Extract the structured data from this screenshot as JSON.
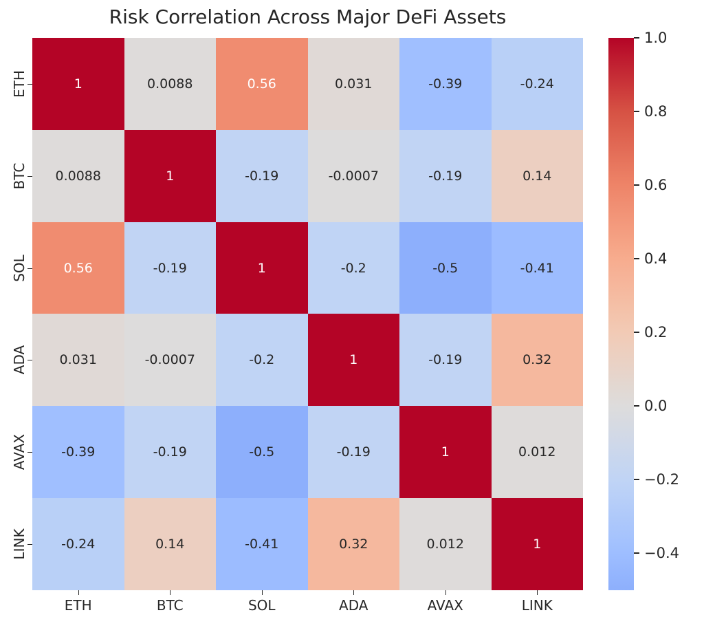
{
  "title": "Risk Correlation Across Major DeFi Assets",
  "chart_data": {
    "type": "heatmap",
    "title": "Risk Correlation Across Major DeFi Assets",
    "categories": [
      "ETH",
      "BTC",
      "SOL",
      "ADA",
      "AVAX",
      "LINK"
    ],
    "matrix": [
      [
        1,
        0.0088,
        0.56,
        0.031,
        -0.39,
        -0.24
      ],
      [
        0.0088,
        1,
        -0.19,
        -0.0007,
        -0.19,
        0.14
      ],
      [
        0.56,
        -0.19,
        1,
        -0.2,
        -0.5,
        -0.41
      ],
      [
        0.031,
        -0.0007,
        -0.2,
        1,
        -0.19,
        0.32
      ],
      [
        -0.39,
        -0.19,
        -0.5,
        -0.19,
        1,
        0.012
      ],
      [
        -0.24,
        0.14,
        -0.41,
        0.32,
        0.012,
        1
      ]
    ],
    "labels": [
      [
        "1",
        "0.0088",
        "0.56",
        "0.031",
        "-0.39",
        "-0.24"
      ],
      [
        "0.0088",
        "1",
        "-0.19",
        "-0.0007",
        "-0.19",
        "0.14"
      ],
      [
        "0.56",
        "-0.19",
        "1",
        "-0.2",
        "-0.5",
        "-0.41"
      ],
      [
        "0.031",
        "-0.0007",
        "-0.2",
        "1",
        "-0.19",
        "0.32"
      ],
      [
        "-0.39",
        "-0.19",
        "-0.5",
        "-0.19",
        "1",
        "0.012"
      ],
      [
        "-0.24",
        "0.14",
        "-0.41",
        "0.32",
        "0.012",
        "1"
      ]
    ],
    "colormap": "coolwarm",
    "colormap_value_range": [
      -1,
      1
    ],
    "colorbar": {
      "min": -0.5,
      "max": 1.0,
      "tick_labels": [
        "1.0",
        "0.8",
        "0.6",
        "0.4",
        "0.2",
        "0.0",
        "−0.2",
        "−0.4"
      ],
      "tick_values": [
        1.0,
        0.8,
        0.6,
        0.4,
        0.2,
        0.0,
        -0.2,
        -0.4
      ],
      "position": "right"
    },
    "colors": {
      "max_color": "#b40426",
      "mid_color": "#dddcdc",
      "text_dark": "#262626",
      "text_light": "#ffffff",
      "background": "#ffffff"
    },
    "grid": false,
    "legend": false
  }
}
